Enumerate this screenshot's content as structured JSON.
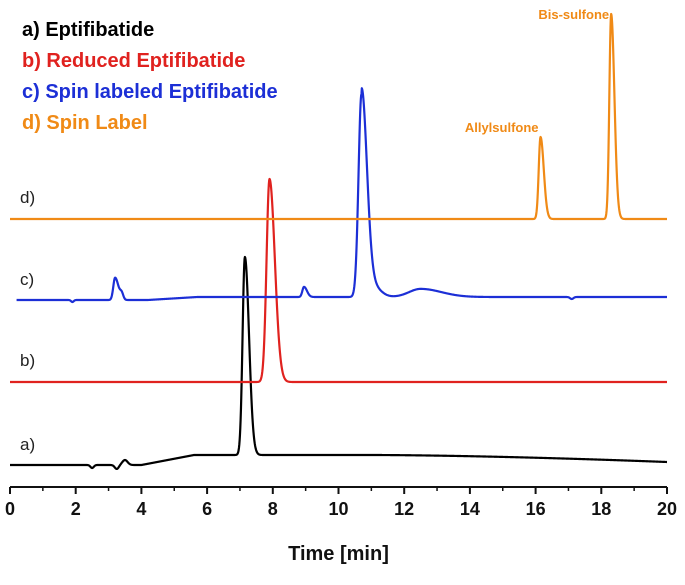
{
  "chart_data": {
    "type": "line",
    "xlabel": "Time [min]",
    "ylabel": "",
    "xlim": [
      0,
      20
    ],
    "xticks": [
      0,
      2,
      4,
      6,
      8,
      10,
      12,
      14,
      16,
      18,
      20
    ],
    "grid": false,
    "legend_position": "top-left",
    "legend": [
      {
        "text": "a) Eptifibatide",
        "color": "#000000"
      },
      {
        "text": "b) Reduced Eptifibatide",
        "color": "#e0221f"
      },
      {
        "text": "c) Spin labeled Eptifibatide",
        "color": "#1c2fd6"
      },
      {
        "text": "d) Spin Label",
        "color": "#f08a16"
      }
    ],
    "series": [
      {
        "label": "a)",
        "color": "#000000",
        "peaks": [
          {
            "x": 7.15,
            "height": 1.0
          }
        ]
      },
      {
        "label": "b)",
        "color": "#e0221f",
        "peaks": [
          {
            "x": 7.9,
            "height": 1.0
          }
        ]
      },
      {
        "label": "c)",
        "color": "#1c2fd6",
        "peaks": [
          {
            "x": 3.2,
            "height": 0.11
          },
          {
            "x": 8.95,
            "height": 0.05
          },
          {
            "x": 10.7,
            "height": 1.0
          },
          {
            "x": 12.5,
            "height": 0.04
          }
        ]
      },
      {
        "label": "d)",
        "color": "#f08a16",
        "peaks": [
          {
            "x": 16.15,
            "height": 0.4
          },
          {
            "x": 18.3,
            "height": 1.0
          }
        ]
      }
    ],
    "annotations": [
      {
        "text": "Allylsulfone",
        "x": 16.15,
        "color": "#f08a16"
      },
      {
        "text": "Bis-sulfone",
        "x": 18.3,
        "color": "#f08a16"
      }
    ]
  }
}
